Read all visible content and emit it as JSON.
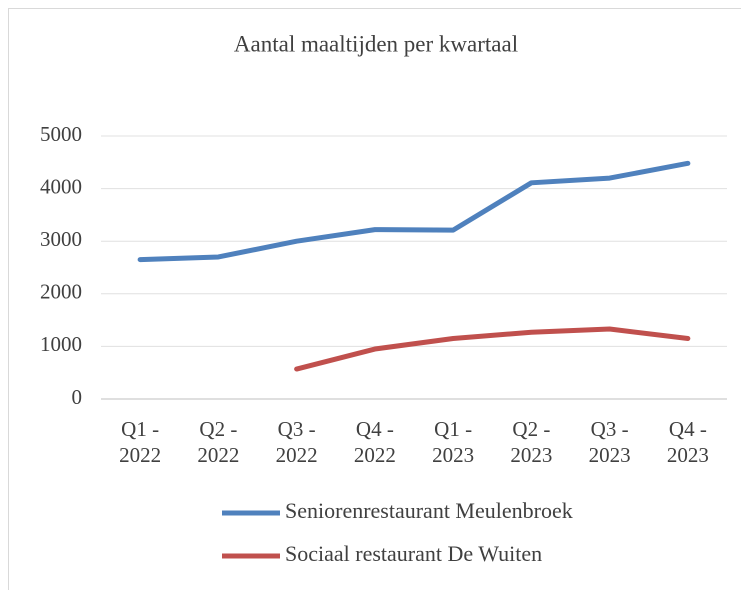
{
  "chart_data": {
    "type": "line",
    "title": "Aantal maaltijden per kwartaal",
    "categories": [
      "Q1 - 2022",
      "Q2 - 2022",
      "Q3 - 2022",
      "Q4 - 2022",
      "Q1 - 2023",
      "Q2 - 2023",
      "Q3 - 2023",
      "Q4 - 2023"
    ],
    "series": [
      {
        "name": "Seniorenrestaurant Meulenbroek",
        "color": "#4f81bd",
        "values": [
          2650,
          2700,
          3000,
          3220,
          3210,
          4110,
          4200,
          4480
        ]
      },
      {
        "name": "Sociaal restaurant De Wuiten",
        "color": "#c0504d",
        "values": [
          null,
          null,
          570,
          950,
          1150,
          1270,
          1330,
          1150
        ]
      }
    ],
    "ylim": [
      0,
      5000
    ],
    "yticks": [
      0,
      1000,
      2000,
      3000,
      4000,
      5000
    ],
    "grid": true,
    "legend": "bottom"
  }
}
